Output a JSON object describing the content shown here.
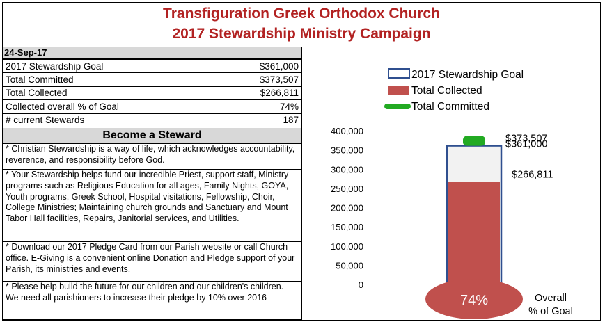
{
  "header": {
    "title_line1": "Transfiguration Greek Orthodox Church",
    "title_line2": "2017 Stewardship Ministry Campaign"
  },
  "date": "24-Sep-17",
  "stats": [
    {
      "label": "2017 Stewardship Goal",
      "value": "$361,000"
    },
    {
      "label": "Total Committed",
      "value": "$373,507"
    },
    {
      "label": "Total Collected",
      "value": "$266,811"
    },
    {
      "label": "Collected overall % of Goal",
      "value": "74%"
    },
    {
      "label": "# current Stewards",
      "value": "187"
    }
  ],
  "become_heading": "Become a Steward",
  "paragraphs": [
    "* Christian Stewardship is a way of life, which acknowledges accountability, reverence, and responsibility before God.",
    "* Your Stewardship helps fund our incredible Priest, support staff, Ministry programs such as Religious Education for all ages, Family Nights, GOYA, Youth programs, Greek School, Hospital visitations, Fellowship, Choir, College Ministries; Maintaining church grounds and Sanctuary and Mount Tabor Hall facilities, Repairs, Janitorial services, and Utilities.",
    "* Download our 2017 Pledge Card from our Parish website or call Church office.  E-Giving is a convenient online Donation and Pledge support of your Parish, its ministries and events.",
    "* Please help build the future for our children and our children's children. We need all parishioners to increase their pledge by 10% over 2016"
  ],
  "chart_data": {
    "type": "bar",
    "title": "",
    "xlabel": "",
    "ylabel": "",
    "ylim": [
      0,
      400000
    ],
    "yticks": [
      0,
      50000,
      100000,
      150000,
      200000,
      250000,
      300000,
      350000,
      400000
    ],
    "ytick_labels": [
      "0",
      "50,000",
      "100,000",
      "150,000",
      "200,000",
      "250,000",
      "300,000",
      "350,000",
      "400,000"
    ],
    "legend_position": "top",
    "series": [
      {
        "name": "2017 Stewardship Goal",
        "value": 361000,
        "label": "$361,000",
        "color": "#2f4f8f"
      },
      {
        "name": "Total Collected",
        "value": 266811,
        "label": "$266,811",
        "color": "#c0504d"
      },
      {
        "name": "Total Committed",
        "value": 373507,
        "label": "$373,507",
        "color": "#22aa22"
      }
    ],
    "bulb": {
      "percent_label": "74%",
      "caption_line1": "Overall",
      "caption_line2": "% of Goal",
      "color": "#c0504d"
    }
  }
}
